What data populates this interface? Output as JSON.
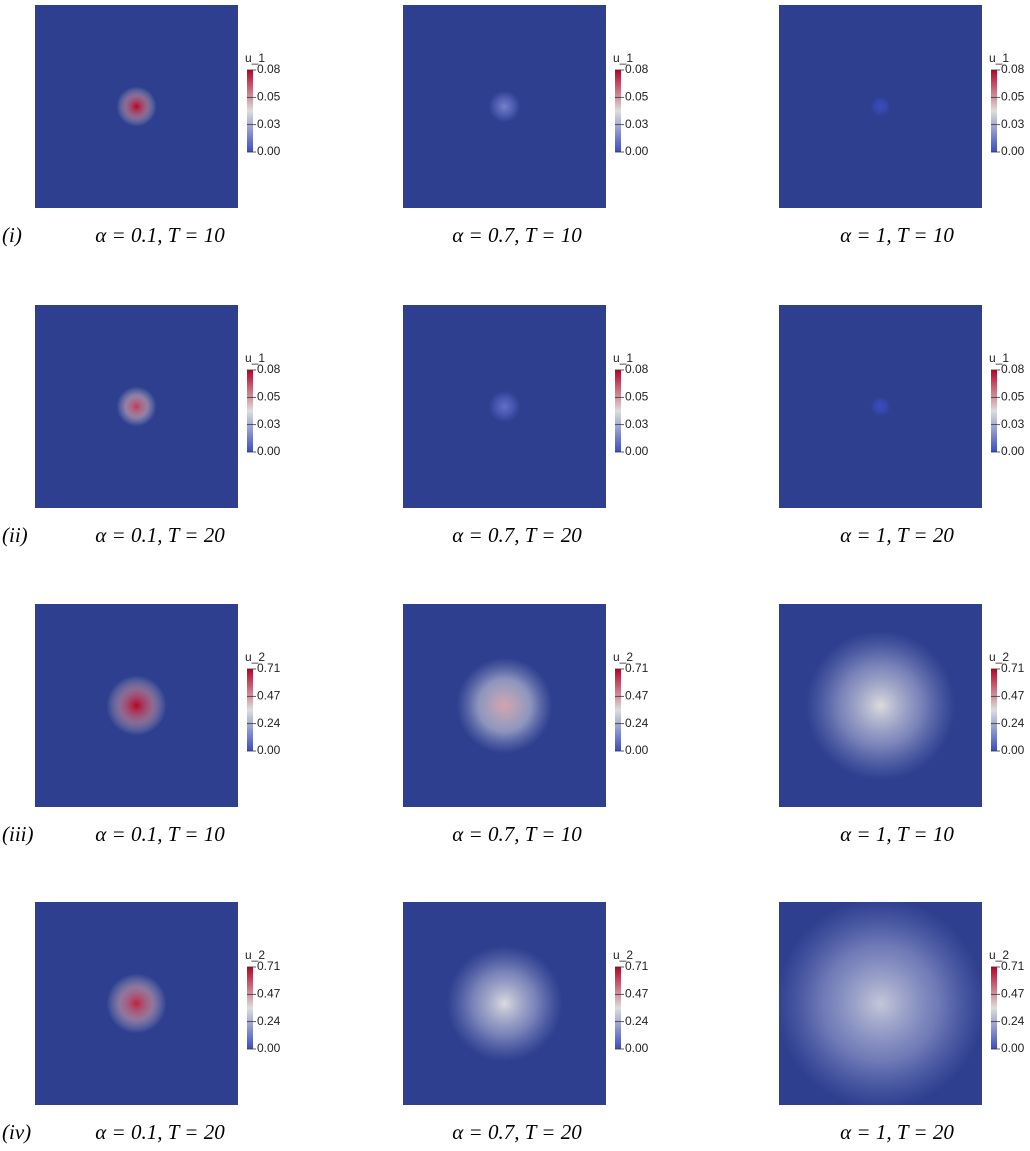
{
  "figure": {
    "rows": [
      {
        "label": "(i)",
        "colorbar": {
          "title": "u_1",
          "ticks": [
            "0.08",
            "0.05",
            "0.03",
            "0.00"
          ]
        },
        "panels": [
          {
            "caption": "α = 0.1,  T = 10",
            "peak": 0.08
          },
          {
            "caption": "α = 0.7,  T = 10",
            "peak": 0.015
          },
          {
            "caption": "α = 1,  T = 10",
            "peak": 0
          }
        ]
      },
      {
        "label": "(ii)",
        "colorbar": {
          "title": "u_1",
          "ticks": [
            "0.08",
            "0.05",
            "0.03",
            "0.00"
          ]
        },
        "panels": [
          {
            "caption": "α = 0.1,  T = 20",
            "peak": 0.07
          },
          {
            "caption": "α = 0.7,  T = 20",
            "peak": 0.01
          },
          {
            "caption": "α = 1,  T = 20",
            "peak": 0
          }
        ]
      },
      {
        "label": "(iii)",
        "colorbar": {
          "title": "u_2",
          "ticks": [
            "0.71",
            "0.47",
            "0.24",
            "0.00"
          ]
        },
        "panels": [
          {
            "caption": "α = 0.1,  T = 10",
            "peak": 0.71
          },
          {
            "caption": "α = 0.7,  T = 10",
            "peak": 0.45
          },
          {
            "caption": "α = 1,  T = 10",
            "peak": 0.35
          }
        ]
      },
      {
        "label": "(iv)",
        "colorbar": {
          "title": "u_2",
          "ticks": [
            "0.71",
            "0.47",
            "0.24",
            "0.00"
          ]
        },
        "panels": [
          {
            "caption": "α = 0.1,  T = 20",
            "peak": 0.66
          },
          {
            "caption": "α = 0.7,  T = 20",
            "peak": 0.35
          },
          {
            "caption": "α = 1,  T = 20",
            "peak": 0.3
          }
        ]
      }
    ]
  }
}
